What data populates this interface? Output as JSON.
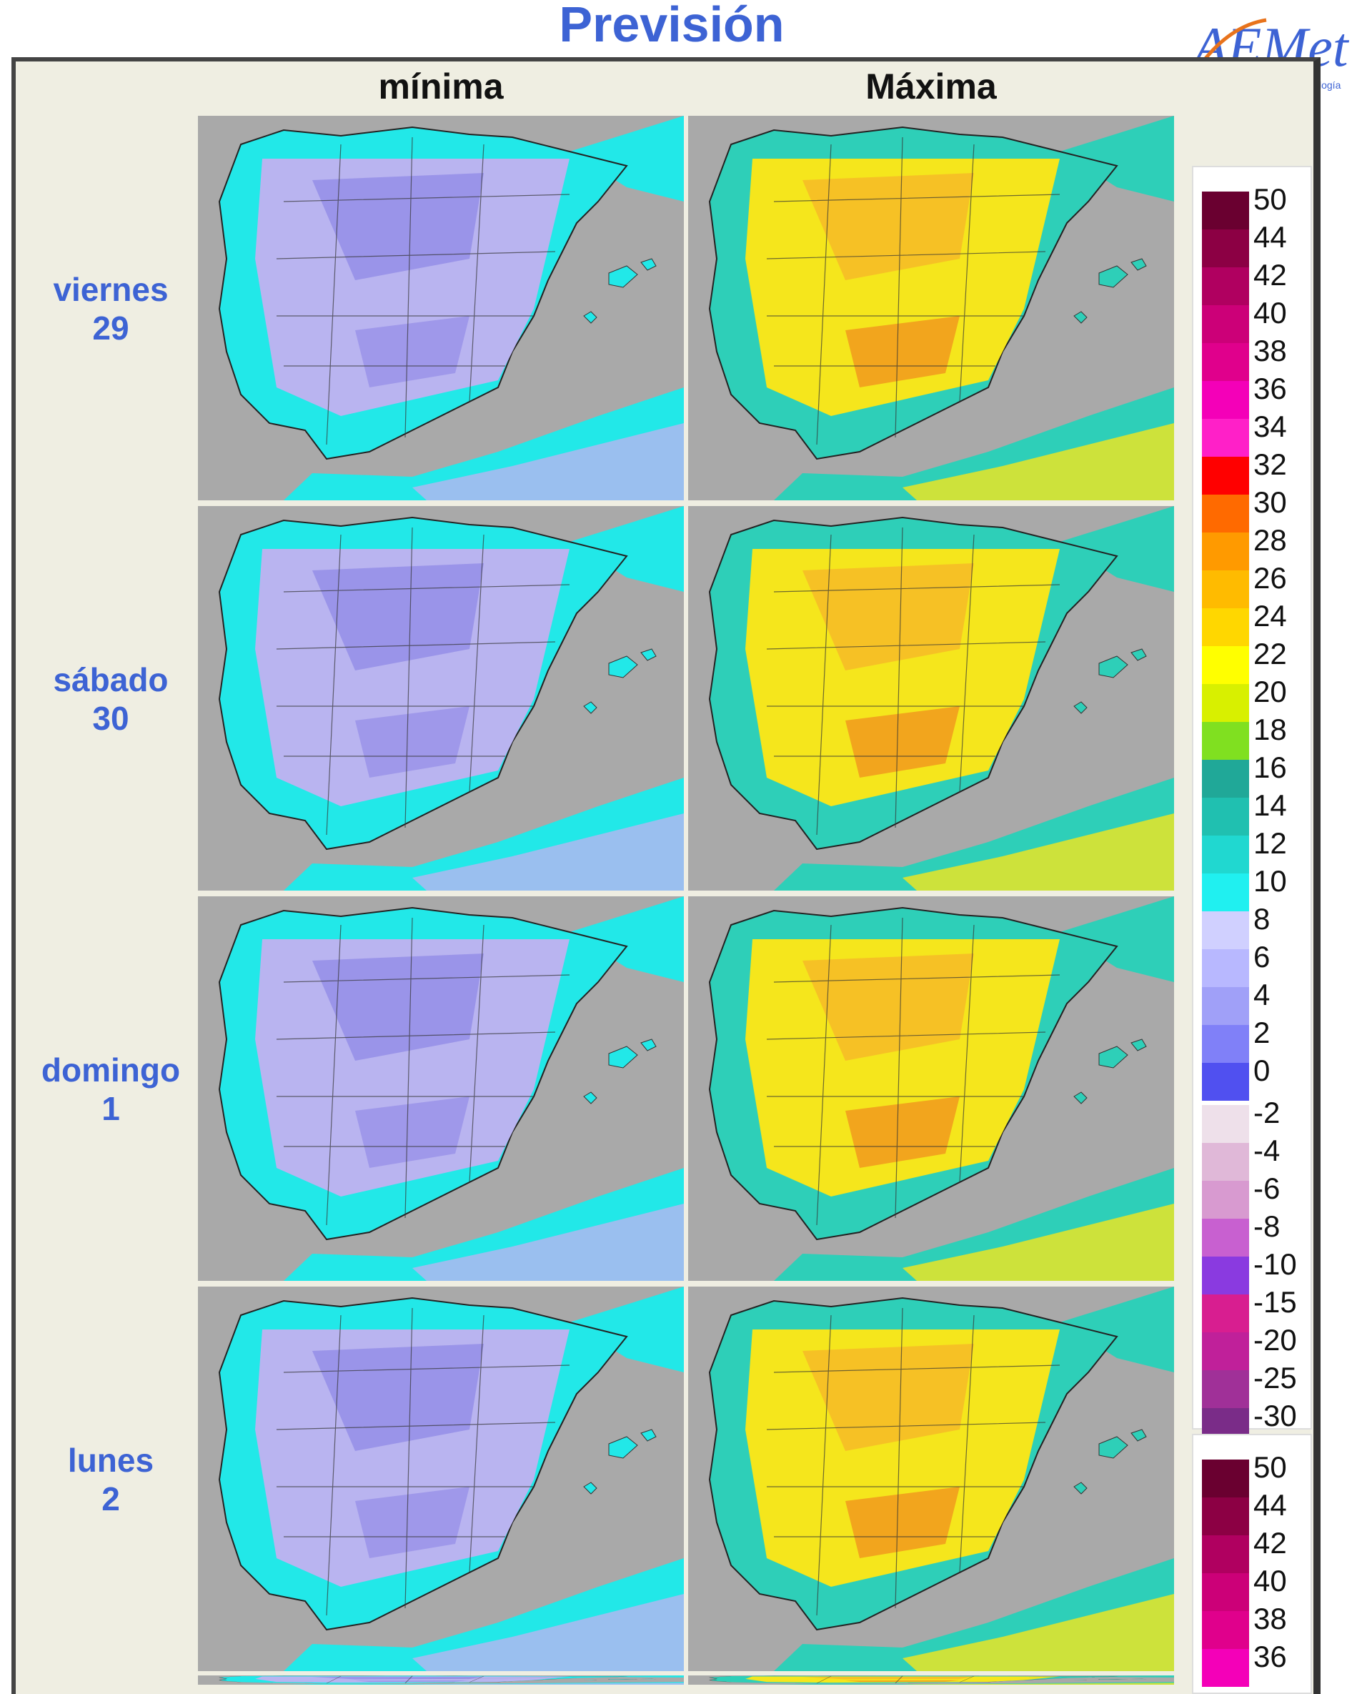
{
  "title": "Previsión",
  "logo": {
    "name": "AEMet",
    "tagline": "Agencia Estatal de Meteorología"
  },
  "columns": [
    "mínima",
    "Máxima"
  ],
  "rows": [
    {
      "day": "viernes",
      "date": "29"
    },
    {
      "day": "sábado",
      "date": "30"
    },
    {
      "day": "domingo",
      "date": "1"
    },
    {
      "day": "lunes",
      "date": "2"
    }
  ],
  "colors": {
    "sea": "#a9a9a9",
    "title": "#3d63d4",
    "min_fill": "#b9b4f0",
    "min_cold": "#8d86e6",
    "min_coast": "#22e8e8",
    "max_fill": "#f5e61c",
    "max_warm": "#f6b12a",
    "max_hot": "#f07a1e",
    "max_cool": "#2ecfb8"
  },
  "legend_upper": {
    "labels": [
      "50",
      "44",
      "42",
      "40",
      "38",
      "36",
      "34",
      "32",
      "30",
      "28",
      "26",
      "24",
      "22",
      "20",
      "18",
      "16",
      "14",
      "12",
      "10",
      "8",
      "6",
      "4",
      "2",
      "0"
    ],
    "colors": [
      "#6a0030",
      "#8c0044",
      "#b00060",
      "#cc0078",
      "#e0008c",
      "#f400b8",
      "#ff20c8",
      "#ff0000",
      "#ff6a00",
      "#ff9a00",
      "#ffbb00",
      "#ffd700",
      "#ffff00",
      "#d8f000",
      "#80e020",
      "#20a898",
      "#20c0b0",
      "#20d8d0",
      "#20f0f0",
      "#d0d0ff",
      "#b8b8ff",
      "#a0a0f8",
      "#8080f8",
      "#5050f0"
    ],
    "neg_labels": [
      "-2",
      "-4",
      "-6",
      "-8",
      "-10",
      "-15",
      "-20",
      "-25",
      "-30"
    ],
    "neg_colors": [
      "#eee0ea",
      "#e0b8d8",
      "#d89ad0",
      "#c860d0",
      "#8a3ae0",
      "#d81e90",
      "#c0209a",
      "#a03098",
      "#7a2c88"
    ]
  },
  "legend_lower": {
    "labels": [
      "50",
      "44",
      "42",
      "40",
      "38",
      "36"
    ],
    "colors": [
      "#6a0030",
      "#8c0044",
      "#b00060",
      "#cc0078",
      "#e0008c",
      "#f400b8"
    ]
  }
}
